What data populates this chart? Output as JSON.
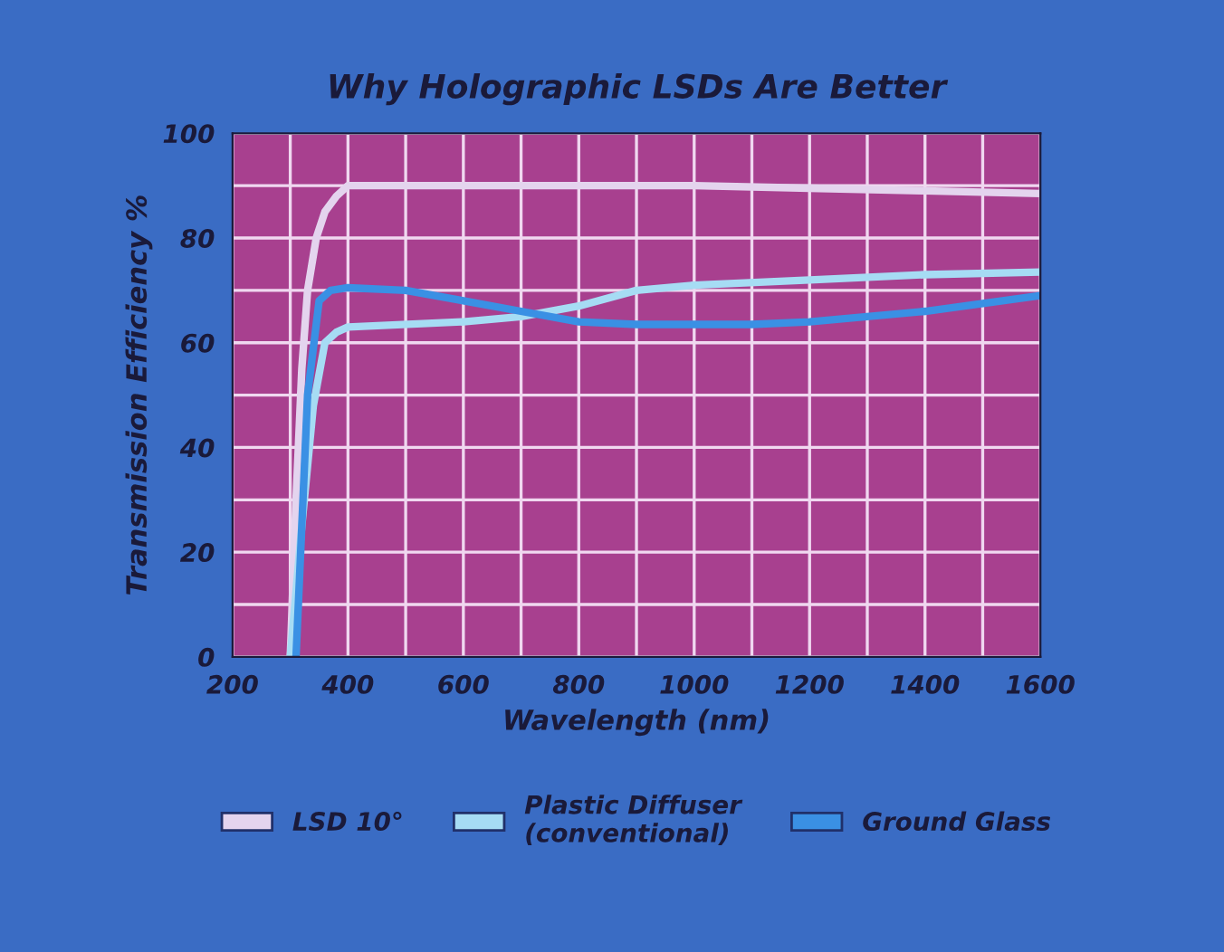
{
  "chart_data": {
    "type": "line",
    "title": "Why Holographic LSDs Are Better",
    "xlabel": "Wavelength (nm)",
    "ylabel": "Transmission Efficiency %",
    "xlim": [
      200,
      1600
    ],
    "xticks": [
      200,
      400,
      600,
      800,
      1000,
      1200,
      1400,
      1600
    ],
    "ylim": [
      0,
      100
    ],
    "yticks": [
      0,
      20,
      40,
      60,
      80,
      100
    ],
    "grid": true,
    "legend": "bottom",
    "marker": "none",
    "line_style": "solid",
    "series": [
      {
        "name": "LSD 10°",
        "color": "#e4d4ee",
        "x": [
          300,
          310,
          320,
          330,
          345,
          360,
          380,
          400,
          600,
          800,
          1000,
          1200,
          1400,
          1600
        ],
        "values": [
          0,
          30,
          55,
          70,
          80,
          85,
          88,
          90,
          90,
          90,
          90,
          89.5,
          89,
          88.5
        ]
      },
      {
        "name": "Plastic Diffuser\n(conventional)",
        "color": "#a6dcf4",
        "x": [
          300,
          320,
          340,
          360,
          380,
          400,
          600,
          700,
          800,
          900,
          1000,
          1200,
          1400,
          1600
        ],
        "values": [
          0,
          25,
          48,
          60,
          62,
          63,
          64,
          65,
          67,
          70,
          71,
          72,
          73,
          73.5
        ]
      },
      {
        "name": "Ground Glass",
        "color": "#3a90e4",
        "x": [
          310,
          330,
          350,
          370,
          400,
          500,
          600,
          700,
          800,
          900,
          1100,
          1200,
          1400,
          1600
        ],
        "values": [
          0,
          50,
          68,
          70,
          70.5,
          70,
          68,
          66,
          64,
          63.5,
          63.5,
          64,
          66,
          69
        ]
      }
    ]
  }
}
